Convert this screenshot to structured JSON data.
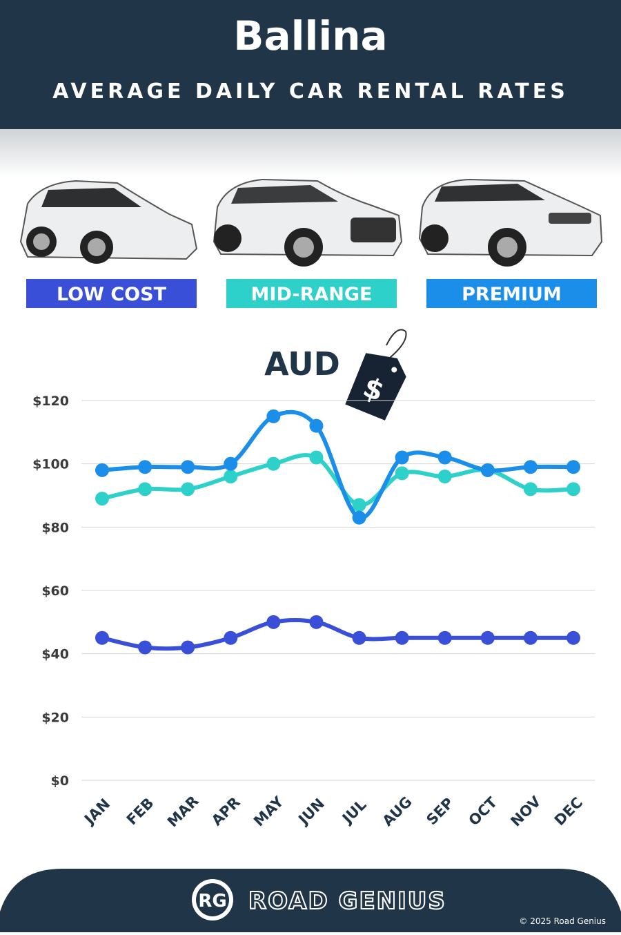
{
  "title": "Ballina",
  "subtitle": "AVERAGE DAILY CAR RENTAL RATES",
  "chart_data": {
    "type": "line",
    "currency": "AUD",
    "tag_symbol": "$",
    "categories": [
      "JAN",
      "FEB",
      "MAR",
      "APR",
      "MAY",
      "JUN",
      "JUL",
      "AUG",
      "SEP",
      "OCT",
      "NOV",
      "DEC"
    ],
    "series": [
      {
        "name": "LOW COST",
        "color": "#3a4fd8",
        "values": [
          45,
          42,
          42,
          45,
          50,
          50,
          45,
          45,
          45,
          45,
          45,
          45
        ]
      },
      {
        "name": "MID-RANGE",
        "color": "#2ed1c9",
        "values": [
          89,
          92,
          92,
          96,
          100,
          102,
          87,
          97,
          96,
          98,
          92,
          92
        ]
      },
      {
        "name": "PREMIUM",
        "color": "#1b8ee9",
        "values": [
          98,
          99,
          99,
          100,
          115,
          112,
          83,
          102,
          102,
          98,
          99,
          99
        ]
      }
    ],
    "ylim": [
      0,
      120
    ],
    "yticks": [
      {
        "value": 0,
        "label": "$0"
      },
      {
        "value": 20,
        "label": "$20"
      },
      {
        "value": 40,
        "label": "$40"
      },
      {
        "value": 60,
        "label": "$60"
      },
      {
        "value": 80,
        "label": "$80"
      },
      {
        "value": 100,
        "label": "$100"
      },
      {
        "value": 120,
        "label": "$120"
      }
    ],
    "grid": true
  },
  "footer": {
    "logo": "RG",
    "brand": "ROAD GENIUS",
    "copyright": "© 2025 Road Genius"
  }
}
